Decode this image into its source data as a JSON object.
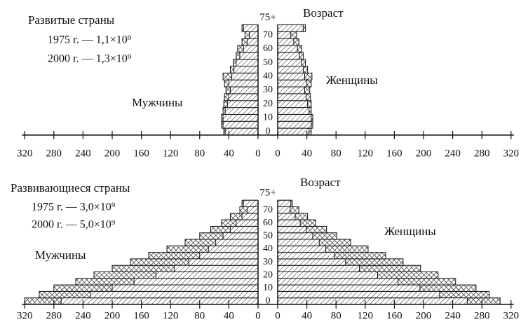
{
  "chart_data": [
    {
      "type": "pyramid",
      "title": "Развитые страны",
      "axis_title": "Возраст",
      "left_label": "Мужчины",
      "right_label": "Женщины",
      "categories": [
        "0",
        null,
        "10",
        null,
        "20",
        null,
        "30",
        null,
        "40",
        null,
        "50",
        null,
        "60",
        null,
        "70",
        "75+"
      ],
      "xlim": [
        0,
        320
      ],
      "xticks": [
        0,
        40,
        80,
        120,
        160,
        200,
        240,
        280,
        320
      ],
      "series": [
        {
          "name": "1975 г. — 1,1×10⁹",
          "pattern": "hatch",
          "male": [
            45,
            48,
            48,
            45,
            42,
            40,
            38,
            40,
            36,
            33,
            30,
            25,
            20,
            15,
            12,
            20
          ],
          "female": [
            43,
            46,
            46,
            43,
            41,
            39,
            37,
            40,
            37,
            35,
            33,
            30,
            27,
            22,
            18,
            35
          ]
        },
        {
          "name": "2000 г. — 1,3×10⁹",
          "pattern": "crosshatch",
          "male": [
            47,
            50,
            50,
            48,
            47,
            46,
            44,
            46,
            48,
            38,
            34,
            30,
            28,
            22,
            18,
            22
          ],
          "female": [
            46,
            48,
            48,
            46,
            46,
            45,
            44,
            46,
            47,
            41,
            38,
            35,
            33,
            29,
            26,
            38
          ]
        }
      ]
    },
    {
      "type": "pyramid",
      "title": "Развивающиеся страны",
      "axis_title": "Возраст",
      "left_label": "Мужчины",
      "right_label": "Женщины",
      "categories": [
        "0",
        null,
        "10",
        null,
        "20",
        null,
        "30",
        null,
        "40",
        null,
        "50",
        null,
        "60",
        null,
        "70",
        "75+"
      ],
      "xlim": [
        0,
        320
      ],
      "xticks": [
        0,
        40,
        80,
        120,
        160,
        200,
        240,
        280,
        320
      ],
      "series": [
        {
          "name": "1975 г. — 3,0×10⁹",
          "pattern": "hatch",
          "male": [
            270,
            230,
            200,
            170,
            140,
            115,
            95,
            80,
            68,
            58,
            48,
            38,
            30,
            22,
            15,
            20
          ],
          "female": [
            260,
            222,
            195,
            165,
            137,
            112,
            93,
            78,
            66,
            57,
            48,
            39,
            31,
            24,
            17,
            18
          ]
        },
        {
          "name": "2000 г. — 5,0×10⁹",
          "pattern": "crosshatch",
          "male": [
            320,
            300,
            280,
            250,
            225,
            200,
            175,
            150,
            125,
            100,
            80,
            65,
            50,
            38,
            25,
            22
          ],
          "female": [
            305,
            290,
            272,
            244,
            220,
            196,
            172,
            148,
            124,
            100,
            81,
            67,
            52,
            41,
            29,
            20
          ]
        }
      ]
    }
  ]
}
